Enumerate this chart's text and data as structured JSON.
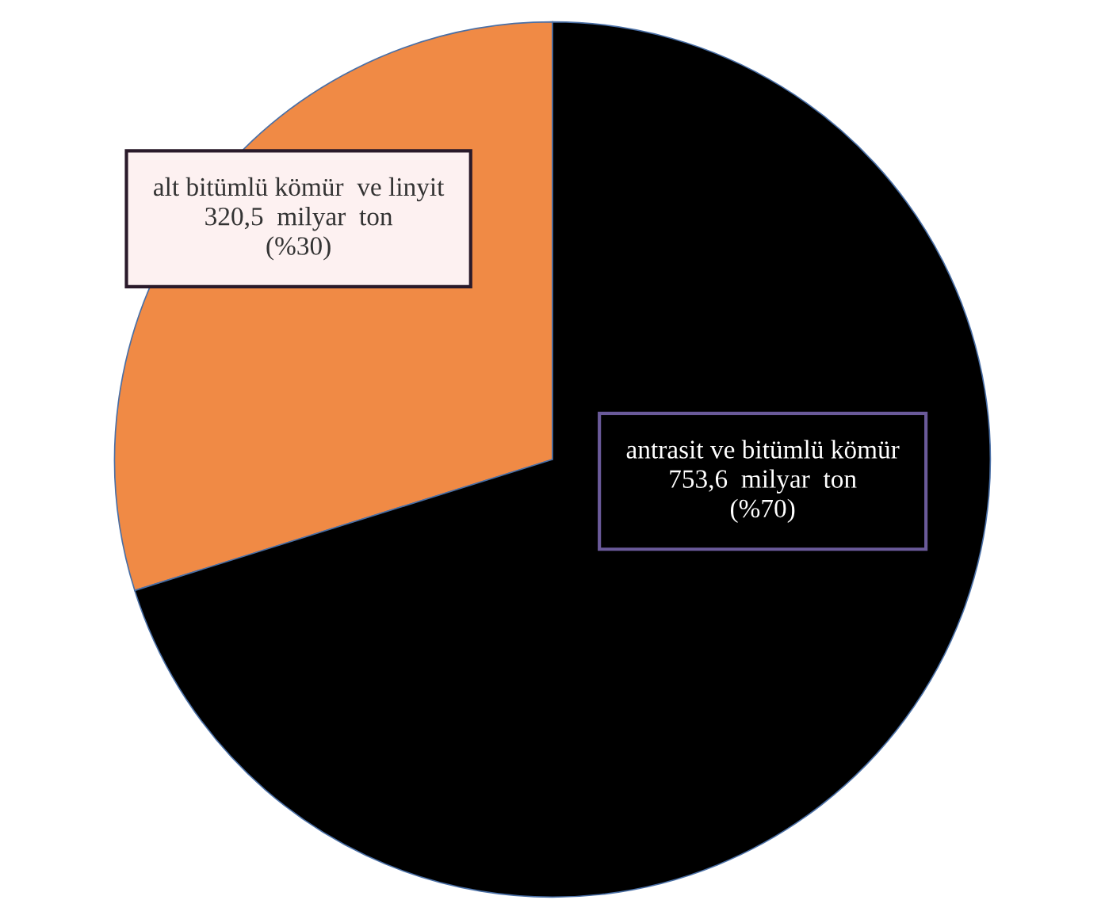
{
  "chart_data": {
    "type": "pie",
    "categories": [
      "alt bitümlü kömür  ve linyit",
      "antrasit ve bitümlü kömür"
    ],
    "values": [
      320.5,
      753.6
    ],
    "colors": [
      "#f08a45",
      "#000000"
    ],
    "value_labels": [
      "320,5  milyar  ton\n(%30)",
      "753,6  milyar  ton\n(%70)"
    ],
    "legend": false
  }
}
